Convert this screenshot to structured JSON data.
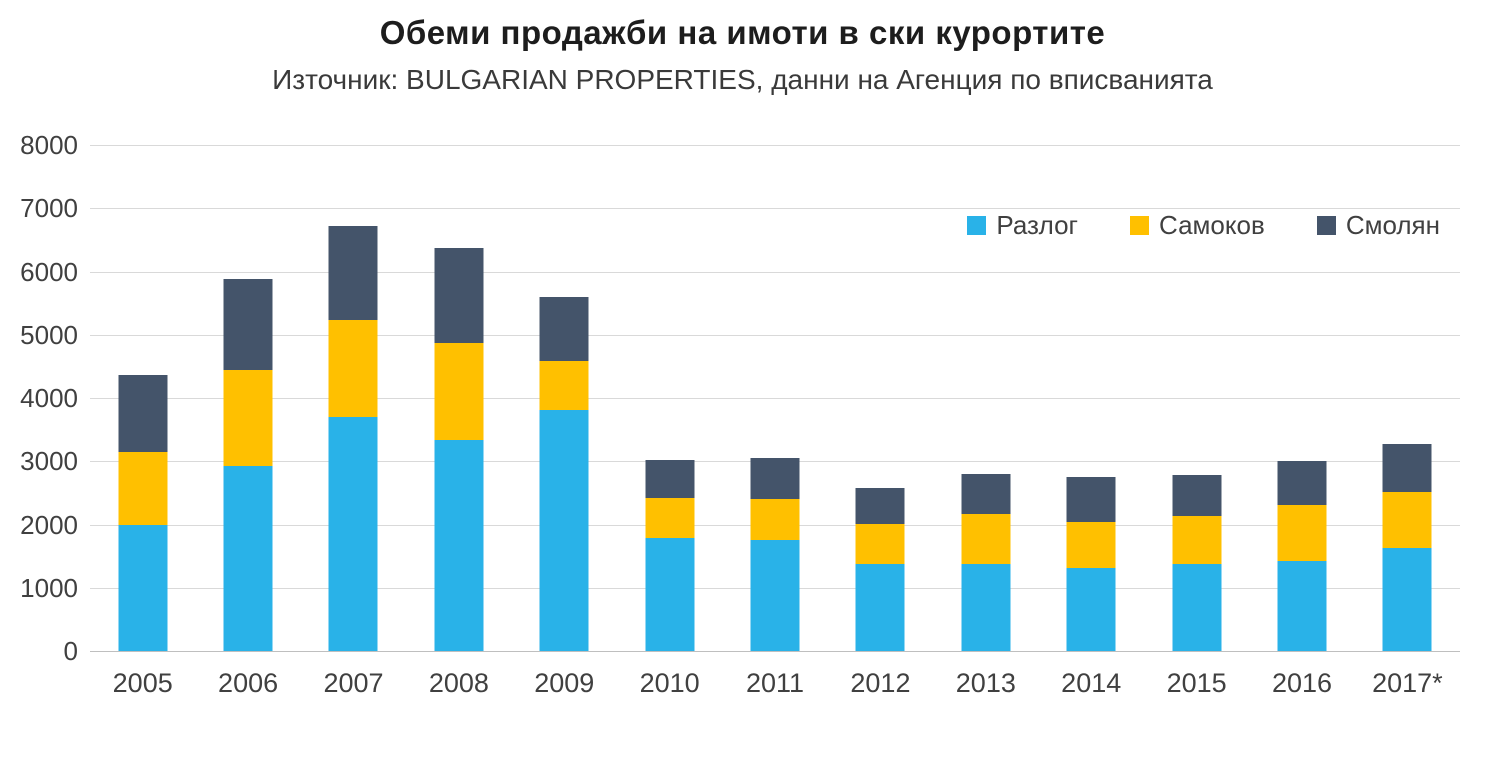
{
  "title": "Обеми продажби на имоти в ски курортите",
  "subtitle": "Източник: BULGARIAN PROPERTIES, данни на Агенция по вписванията",
  "colors": {
    "razlog": "#29B2E8",
    "samokov": "#FFC000",
    "smolyan": "#44546A",
    "gridline": "#D9D9D9"
  },
  "chart_data": {
    "type": "bar",
    "stacked": true,
    "title": "Обеми продажби на имоти в ски курортите",
    "subtitle": "Източник: BULGARIAN PROPERTIES, данни на Агенция по вписванията",
    "categories": [
      "2005",
      "2006",
      "2007",
      "2008",
      "2009",
      "2010",
      "2011",
      "2012",
      "2013",
      "2014",
      "2015",
      "2016",
      "2017*"
    ],
    "series": [
      {
        "name": "Разлог",
        "color": "#29B2E8",
        "values": [
          2000,
          2930,
          3700,
          3330,
          3810,
          1780,
          1760,
          1370,
          1370,
          1320,
          1370,
          1420,
          1630
        ]
      },
      {
        "name": "Самоков",
        "color": "#FFC000",
        "values": [
          1150,
          1510,
          1530,
          1540,
          780,
          640,
          650,
          640,
          790,
          720,
          760,
          890,
          880
        ]
      },
      {
        "name": "Смолян",
        "color": "#44546A",
        "values": [
          1220,
          1440,
          1490,
          1510,
          1000,
          600,
          650,
          570,
          640,
          720,
          660,
          690,
          770
        ]
      }
    ],
    "totals": [
      4370,
      5880,
      6720,
      6380,
      5590,
      3020,
      3060,
      2580,
      2800,
      2760,
      2790,
      3000,
      3280
    ],
    "xlabel": "",
    "ylabel": "",
    "ylim": [
      0,
      8000
    ],
    "ytick_step": 1000,
    "grid": true,
    "legend_position": "top-right-inside"
  }
}
